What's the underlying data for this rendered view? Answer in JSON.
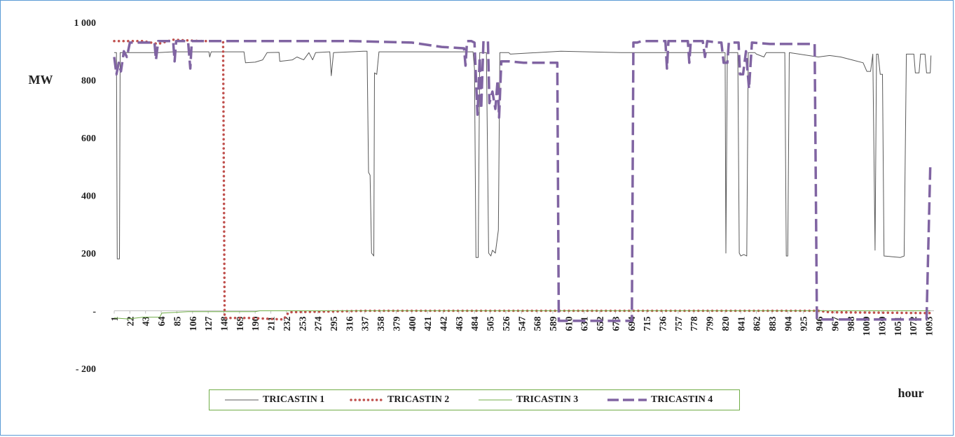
{
  "chart_data": {
    "type": "line",
    "ylabel": "MW",
    "xlabel": "hour",
    "ylim": [
      -200,
      1000
    ],
    "y_ticks": [
      {
        "value": 1000,
        "label": "1 000"
      },
      {
        "value": 800,
        "label": "800"
      },
      {
        "value": 600,
        "label": "600"
      },
      {
        "value": 400,
        "label": "400"
      },
      {
        "value": 200,
        "label": "200"
      },
      {
        "value": 0,
        "label": "-"
      },
      {
        "value": -200,
        "label": "- 200"
      }
    ],
    "xlim": [
      1,
      1100
    ],
    "x_ticks": [
      1,
      22,
      43,
      64,
      85,
      106,
      127,
      148,
      169,
      190,
      211,
      232,
      253,
      274,
      295,
      316,
      337,
      358,
      379,
      400,
      421,
      442,
      463,
      484,
      505,
      526,
      547,
      568,
      589,
      610,
      631,
      652,
      673,
      694,
      715,
      736,
      757,
      778,
      799,
      820,
      841,
      862,
      883,
      904,
      925,
      946,
      967,
      988,
      1009,
      1030,
      1051,
      1072,
      1093
    ],
    "grid": false,
    "legend_position": "bottom",
    "series": [
      {
        "name": "TRICASTIN 1",
        "color": "#595959",
        "style": "solid",
        "points": [
          [
            1,
            895
          ],
          [
            4,
            895
          ],
          [
            5,
            180
          ],
          [
            8,
            180
          ],
          [
            9,
            895
          ],
          [
            60,
            895
          ],
          [
            80,
            898
          ],
          [
            128,
            898
          ],
          [
            129,
            880
          ],
          [
            131,
            898
          ],
          [
            175,
            898
          ],
          [
            177,
            860
          ],
          [
            190,
            862
          ],
          [
            200,
            870
          ],
          [
            206,
            895
          ],
          [
            222,
            896
          ],
          [
            223,
            865
          ],
          [
            240,
            870
          ],
          [
            246,
            880
          ],
          [
            255,
            870
          ],
          [
            262,
            895
          ],
          [
            267,
            870
          ],
          [
            271,
            895
          ],
          [
            290,
            898
          ],
          [
            292,
            815
          ],
          [
            295,
            895
          ],
          [
            335,
            900
          ],
          [
            340,
            900
          ],
          [
            342,
            480
          ],
          [
            344,
            470
          ],
          [
            346,
            200
          ],
          [
            349,
            190
          ],
          [
            350,
            825
          ],
          [
            353,
            820
          ],
          [
            356,
            898
          ],
          [
            482,
            898
          ],
          [
            484,
            840
          ],
          [
            486,
            185
          ],
          [
            489,
            185
          ],
          [
            491,
            895
          ],
          [
            500,
            895
          ],
          [
            503,
            200
          ],
          [
            506,
            190
          ],
          [
            508,
            210
          ],
          [
            512,
            200
          ],
          [
            516,
            280
          ],
          [
            518,
            895
          ],
          [
            530,
            895
          ],
          [
            532,
            890
          ],
          [
            600,
            900
          ],
          [
            680,
            895
          ],
          [
            820,
            895
          ],
          [
            821,
            200
          ],
          [
            823,
            895
          ],
          [
            837,
            895
          ],
          [
            839,
            200
          ],
          [
            841,
            190
          ],
          [
            845,
            195
          ],
          [
            849,
            190
          ],
          [
            851,
            895
          ],
          [
            860,
            895
          ],
          [
            862,
            890
          ],
          [
            872,
            880
          ],
          [
            875,
            895
          ],
          [
            900,
            895
          ],
          [
            902,
            190
          ],
          [
            904,
            190
          ],
          [
            906,
            895
          ],
          [
            945,
            880
          ],
          [
            960,
            885
          ],
          [
            975,
            880
          ],
          [
            990,
            870
          ],
          [
            1005,
            860
          ],
          [
            1010,
            830
          ],
          [
            1015,
            830
          ],
          [
            1018,
            890
          ],
          [
            1021,
            210
          ],
          [
            1023,
            890
          ],
          [
            1025,
            890
          ],
          [
            1028,
            820
          ],
          [
            1031,
            820
          ],
          [
            1033,
            190
          ],
          [
            1055,
            185
          ],
          [
            1060,
            190
          ],
          [
            1063,
            890
          ],
          [
            1073,
            890
          ],
          [
            1075,
            825
          ],
          [
            1080,
            825
          ],
          [
            1082,
            890
          ],
          [
            1088,
            890
          ],
          [
            1090,
            825
          ],
          [
            1095,
            825
          ],
          [
            1096,
            885
          ]
        ]
      },
      {
        "name": "TRICASTIN 2",
        "color": "#c0504d",
        "style": "dotted",
        "points": [
          [
            1,
            935
          ],
          [
            40,
            935
          ],
          [
            60,
            925
          ],
          [
            80,
            940
          ],
          [
            120,
            935
          ],
          [
            147,
            935
          ],
          [
            149,
            -25
          ],
          [
            185,
            -25
          ],
          [
            210,
            -28
          ],
          [
            228,
            -30
          ],
          [
            235,
            -5
          ],
          [
            340,
            0
          ],
          [
            945,
            0
          ],
          [
            960,
            -5
          ],
          [
            1095,
            -8
          ]
        ]
      },
      {
        "name": "TRICASTIN 3",
        "color": "#70ad47",
        "style": "solid",
        "points": [
          [
            1,
            -25
          ],
          [
            20,
            -28
          ],
          [
            40,
            -22
          ],
          [
            62,
            -22
          ],
          [
            65,
            -8
          ],
          [
            100,
            -3
          ],
          [
            190,
            -3
          ],
          [
            196,
            0
          ],
          [
            1095,
            0
          ]
        ]
      },
      {
        "name": "TRICASTIN 4",
        "color": "#8064a2",
        "style": "dashed",
        "points": [
          [
            1,
            880
          ],
          [
            4,
            820
          ],
          [
            7,
            860
          ],
          [
            10,
            830
          ],
          [
            14,
            900
          ],
          [
            18,
            880
          ],
          [
            22,
            930
          ],
          [
            55,
            930
          ],
          [
            57,
            870
          ],
          [
            60,
            935
          ],
          [
            80,
            935
          ],
          [
            82,
            865
          ],
          [
            84,
            935
          ],
          [
            100,
            935
          ],
          [
            103,
            840
          ],
          [
            105,
            935
          ],
          [
            200,
            935
          ],
          [
            240,
            935
          ],
          [
            320,
            935
          ],
          [
            400,
            930
          ],
          [
            440,
            915
          ],
          [
            470,
            910
          ],
          [
            472,
            850
          ],
          [
            474,
            935
          ],
          [
            480,
            935
          ],
          [
            484,
            930
          ],
          [
            488,
            680
          ],
          [
            491,
            880
          ],
          [
            493,
            700
          ],
          [
            496,
            935
          ],
          [
            502,
            935
          ],
          [
            504,
            720
          ],
          [
            508,
            760
          ],
          [
            512,
            700
          ],
          [
            515,
            800
          ],
          [
            517,
            670
          ],
          [
            520,
            865
          ],
          [
            530,
            865
          ],
          [
            550,
            860
          ],
          [
            595,
            860
          ],
          [
            597,
            -35
          ],
          [
            650,
            -35
          ],
          [
            695,
            -35
          ],
          [
            697,
            930
          ],
          [
            702,
            930
          ],
          [
            708,
            935
          ],
          [
            740,
            935
          ],
          [
            742,
            840
          ],
          [
            744,
            935
          ],
          [
            770,
            935
          ],
          [
            772,
            860
          ],
          [
            774,
            935
          ],
          [
            790,
            935
          ],
          [
            793,
            880
          ],
          [
            796,
            935
          ],
          [
            810,
            930
          ],
          [
            815,
            930
          ],
          [
            818,
            860
          ],
          [
            823,
            860
          ],
          [
            825,
            930
          ],
          [
            838,
            930
          ],
          [
            840,
            820
          ],
          [
            844,
            820
          ],
          [
            848,
            900
          ],
          [
            852,
            770
          ],
          [
            856,
            930
          ],
          [
            880,
            925
          ],
          [
            930,
            925
          ],
          [
            935,
            925
          ],
          [
            940,
            925
          ],
          [
            943,
            -30
          ],
          [
            1085,
            -30
          ],
          [
            1090,
            -30
          ],
          [
            1095,
            500
          ]
        ]
      }
    ]
  }
}
